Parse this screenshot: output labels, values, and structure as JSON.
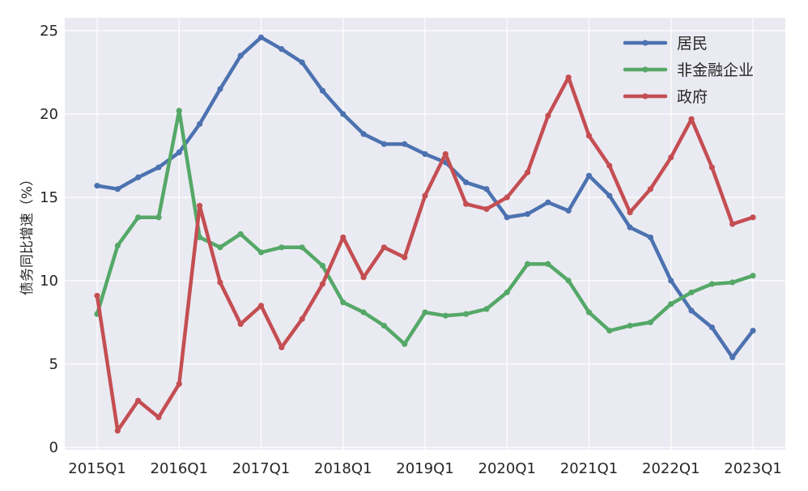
{
  "chart_data": {
    "type": "line",
    "title": "",
    "xlabel": "",
    "ylabel": "债务同比增速（%）",
    "ylim": [
      0,
      25
    ],
    "yticks": [
      0,
      5,
      10,
      15,
      20,
      25
    ],
    "x": [
      "2015Q1",
      "2015Q2",
      "2015Q3",
      "2015Q4",
      "2016Q1",
      "2016Q2",
      "2016Q3",
      "2016Q4",
      "2017Q1",
      "2017Q2",
      "2017Q3",
      "2017Q4",
      "2018Q1",
      "2018Q2",
      "2018Q3",
      "2018Q4",
      "2019Q1",
      "2019Q2",
      "2019Q3",
      "2019Q4",
      "2020Q1",
      "2020Q2",
      "2020Q3",
      "2020Q4",
      "2021Q1",
      "2021Q2",
      "2021Q3",
      "2021Q4",
      "2022Q1",
      "2022Q2",
      "2022Q3",
      "2022Q4",
      "2023Q1"
    ],
    "xtick_labels": [
      "2015Q1",
      "2016Q1",
      "2017Q1",
      "2018Q1",
      "2019Q1",
      "2020Q1",
      "2021Q1",
      "2022Q1",
      "2023Q1"
    ],
    "grid": true,
    "legend_position": "top-right",
    "series": [
      {
        "name": "居民",
        "color": "#4c72b0",
        "values": [
          15.7,
          15.5,
          16.2,
          16.8,
          17.7,
          19.4,
          21.5,
          23.5,
          24.6,
          23.9,
          23.1,
          21.4,
          20.0,
          18.8,
          18.2,
          18.2,
          17.6,
          17.1,
          15.9,
          15.5,
          13.8,
          14.0,
          14.7,
          14.2,
          16.3,
          15.1,
          13.2,
          12.6,
          10.0,
          8.2,
          7.2,
          5.4,
          7.0
        ]
      },
      {
        "name": "非金融企业",
        "color": "#55a868",
        "values": [
          8.0,
          12.1,
          13.8,
          13.8,
          20.2,
          12.6,
          12.0,
          12.8,
          11.7,
          12.0,
          12.0,
          10.9,
          8.7,
          8.1,
          7.3,
          6.2,
          8.1,
          7.9,
          8.0,
          8.3,
          9.3,
          11.0,
          11.0,
          10.0,
          8.1,
          7.0,
          7.3,
          7.5,
          8.6,
          9.3,
          9.8,
          9.9,
          10.3
        ]
      },
      {
        "name": "政府",
        "color": "#c44e52",
        "values": [
          9.1,
          1.0,
          2.8,
          1.8,
          3.8,
          14.5,
          9.9,
          7.4,
          8.5,
          6.0,
          7.7,
          9.8,
          12.6,
          10.2,
          12.0,
          11.4,
          15.1,
          17.6,
          14.6,
          14.3,
          15.0,
          16.5,
          19.9,
          22.2,
          18.7,
          16.9,
          14.1,
          15.5,
          17.4,
          19.7,
          16.8,
          13.4,
          13.8
        ]
      }
    ]
  }
}
